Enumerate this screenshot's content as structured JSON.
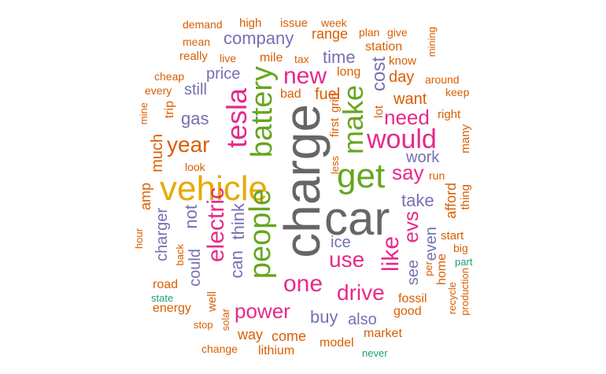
{
  "colors": {
    "gray": "#666666",
    "orange": "#d95f02",
    "purple": "#7570b3",
    "pink": "#e7298a",
    "green": "#66a61e",
    "gold": "#e6ab02",
    "teal": "#1b9e77"
  },
  "words": [
    "charge",
    "car",
    "vehicle",
    "get",
    "people",
    "battery",
    "tesla",
    "make",
    "would",
    "new",
    "electric",
    "one",
    "use",
    "like",
    "drive",
    "year",
    "evs",
    "power",
    "say",
    "need",
    "cost",
    "company",
    "time",
    "take",
    "price",
    "gas",
    "not",
    "could",
    "can",
    "think",
    "buy",
    "also",
    "see",
    "even",
    "charger",
    "work",
    "want",
    "day",
    "ice",
    "fuel",
    "range",
    "still",
    "much",
    "amp",
    "come",
    "model",
    "way",
    "lithium",
    "market",
    "good",
    "fossil",
    "energy",
    "road",
    "afford",
    "start",
    "home",
    "big",
    "recycle",
    "production",
    "per",
    "part",
    "mile",
    "tax",
    "station",
    "plan",
    "give",
    "mining",
    "know",
    "around",
    "keep",
    "right",
    "many",
    "thing",
    "run",
    "less",
    "first",
    "grid",
    "lot",
    "long",
    "bad",
    "trip",
    "every",
    "cheap",
    "mine",
    "really",
    "live",
    "mean",
    "demand",
    "high",
    "issue",
    "week",
    "look",
    "hour",
    "back",
    "well",
    "state",
    "stop",
    "solar",
    "change",
    "never"
  ]
}
